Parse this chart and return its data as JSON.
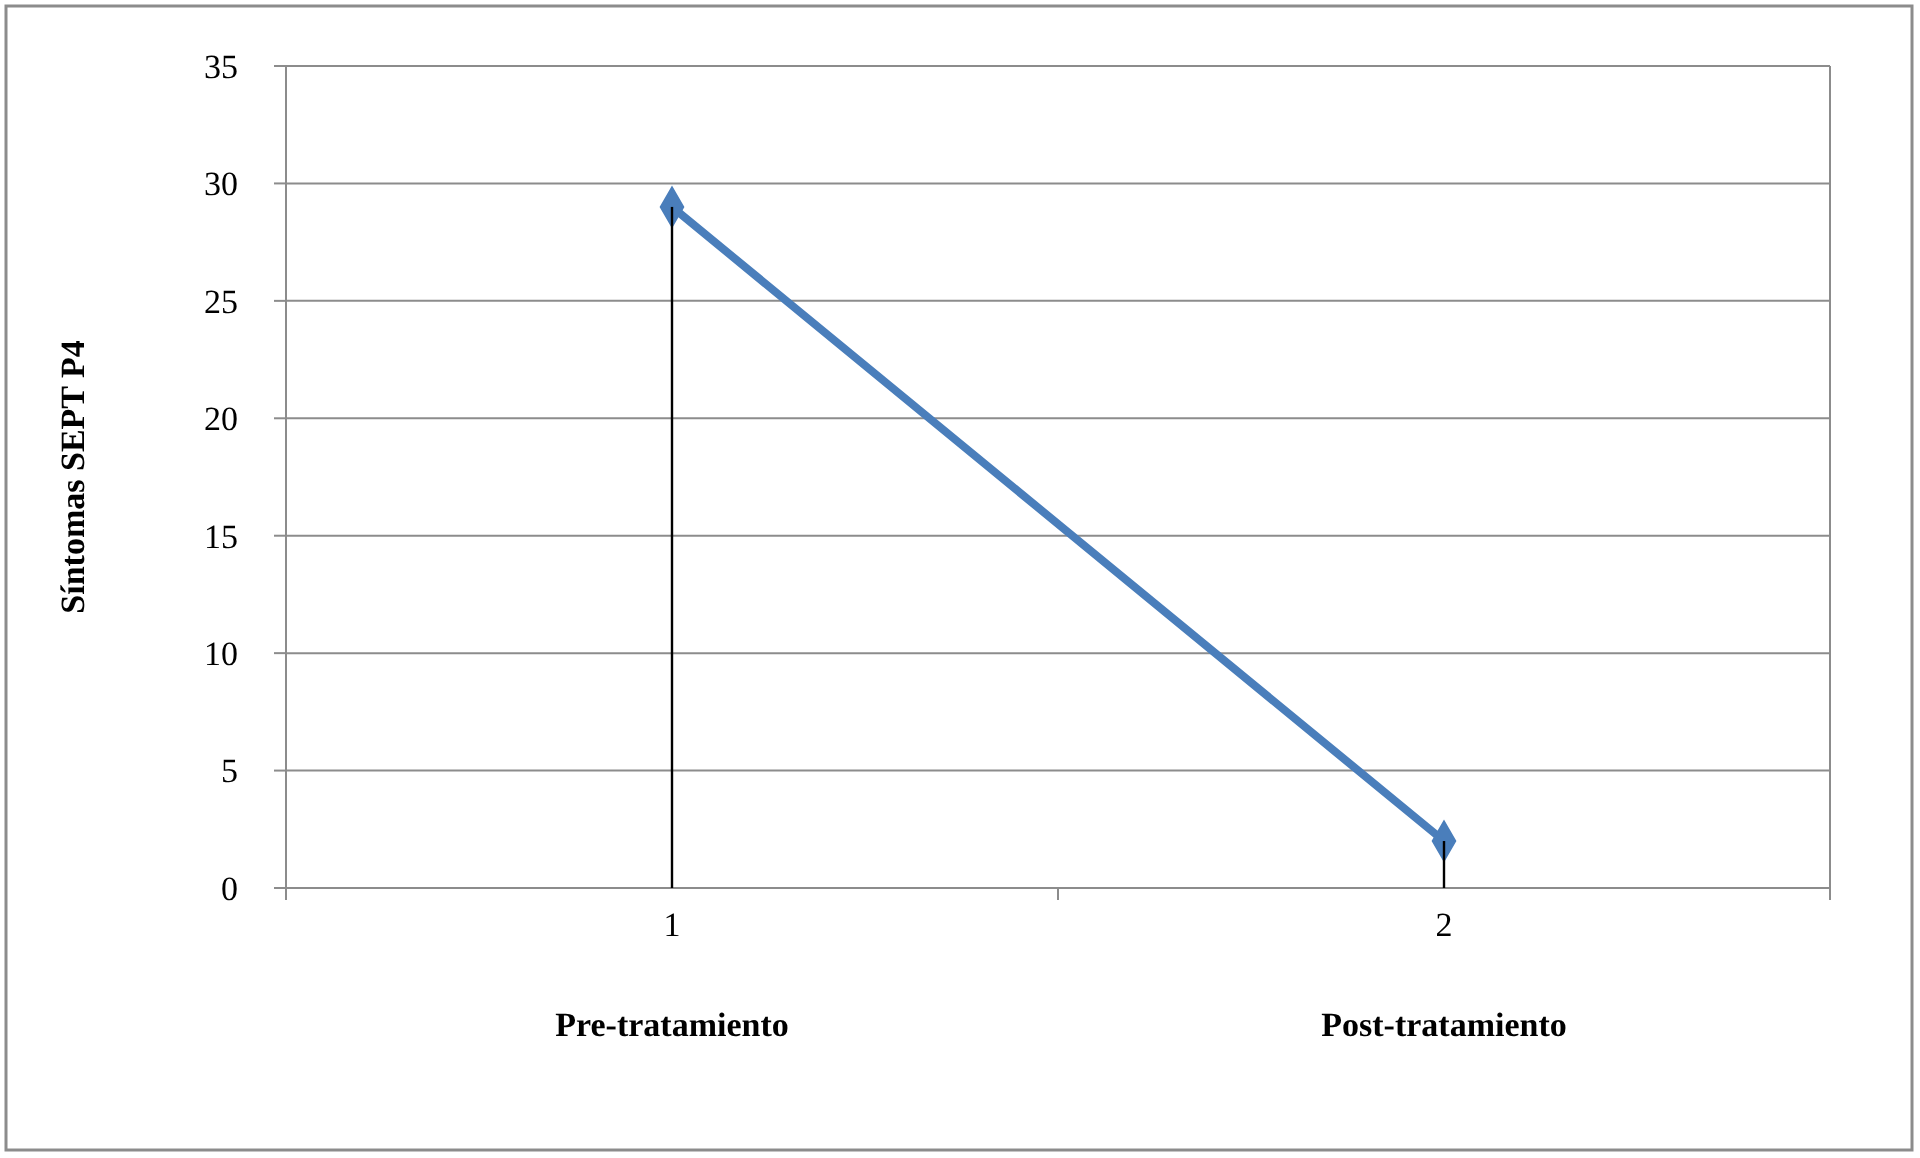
{
  "chart_data": {
    "type": "line",
    "ylabel": "Síntomas SEPT P4",
    "categories": [
      "1",
      "2"
    ],
    "series": [
      {
        "type": "bar",
        "color": "#000000",
        "values": [
          29,
          2
        ]
      },
      {
        "color": "#4a7ebb",
        "values": [
          29,
          2
        ]
      }
    ],
    "ylim": [
      0,
      35
    ],
    "yticks": [
      0,
      5,
      10,
      15,
      20,
      25,
      30,
      35
    ],
    "grid": "y",
    "marker": "diamond",
    "line_style": "solid",
    "annotations": [
      "Pre-tratamiento",
      "Post-tratamiento"
    ]
  }
}
